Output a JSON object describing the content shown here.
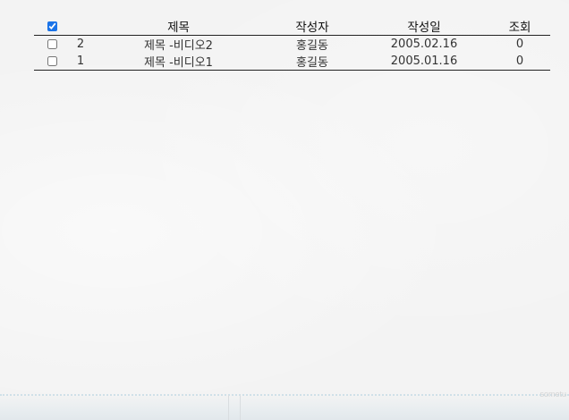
{
  "board": {
    "header": {
      "select_all_checked": true,
      "title": "제목",
      "author": "작성자",
      "date": "작성일",
      "views": "조회"
    },
    "rows": [
      {
        "checked": false,
        "no": "2",
        "title": "제목 -비디오2",
        "author": "홍길동",
        "date": "2005.02.16",
        "views": "0"
      },
      {
        "checked": false,
        "no": "1",
        "title": "제목 -비디오1",
        "author": "홍길동",
        "date": "2005.01.16",
        "views": "0"
      }
    ]
  },
  "colors": {
    "background": "#f3f3f3",
    "rule": "#222222",
    "author_link": "#8a8ea8",
    "checkbox_accent": "#1a73e8"
  }
}
